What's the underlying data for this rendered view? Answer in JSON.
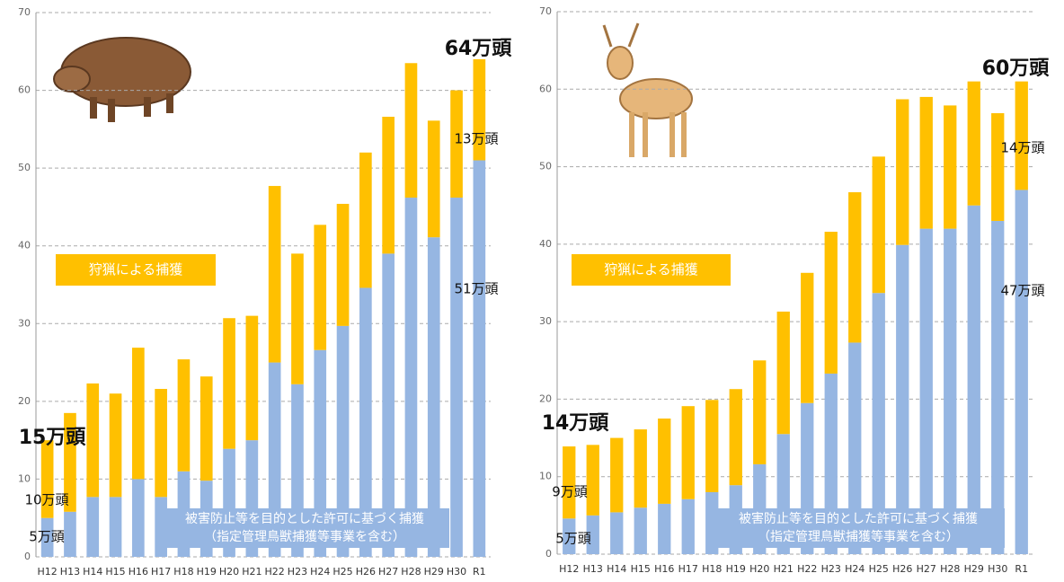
{
  "chart_data": [
    {
      "type": "bar",
      "stacked": true,
      "categories": [
        "H12",
        "H13",
        "H14",
        "H15",
        "H16",
        "H17",
        "H18",
        "H19",
        "H20",
        "H21",
        "H22",
        "H23",
        "H24",
        "H25",
        "H26",
        "H27",
        "H28",
        "H29",
        "H30",
        "R1"
      ],
      "series": [
        {
          "name": "被害防止等を目的とした許可に基づく捕獲",
          "note": "（指定管理鳥獣捕獲等事業を含む）",
          "color": "#96b6e2",
          "values": [
            5,
            5.8,
            7.7,
            7.7,
            10,
            7.7,
            11,
            9.8,
            13.9,
            15,
            25,
            22.2,
            26.6,
            29.7,
            34.6,
            39,
            46.2,
            41.1,
            46.2,
            51
          ]
        },
        {
          "name": "狩猟による捕獲",
          "color": "#ffc000",
          "values": [
            10,
            12.7,
            14.6,
            13.3,
            16.9,
            13.9,
            14.4,
            13.4,
            16.8,
            16,
            22.7,
            16.8,
            16.1,
            15.7,
            17.4,
            17.6,
            17.3,
            15,
            13.8,
            13
          ]
        }
      ],
      "ylim": [
        0,
        70
      ],
      "yticks": [
        0,
        10,
        20,
        30,
        40,
        50,
        60,
        70
      ],
      "grid": true,
      "annotations": [
        "64万頭",
        "13万頭",
        "51万頭",
        "15万頭",
        "10万頭",
        "5万頭"
      ]
    },
    {
      "type": "bar",
      "stacked": true,
      "categories": [
        "H12",
        "H13",
        "H14",
        "H15",
        "H16",
        "H17",
        "H18",
        "H19",
        "H20",
        "H21",
        "H22",
        "H23",
        "H24",
        "H25",
        "H26",
        "H27",
        "H28",
        "H29",
        "H30",
        "R1"
      ],
      "series": [
        {
          "name": "被害防止等を目的とした許可に基づく捕獲",
          "note": "（指定管理鳥獣捕獲等事業を含む）",
          "color": "#96b6e2",
          "values": [
            4.6,
            5,
            5.4,
            6,
            6.5,
            7.1,
            8,
            8.9,
            11.6,
            15.5,
            19.5,
            23.3,
            27.3,
            33.7,
            39.9,
            42,
            42,
            45,
            43,
            47
          ]
        },
        {
          "name": "狩猟による捕獲",
          "color": "#ffc000",
          "values": [
            9.3,
            9.1,
            9.6,
            10.1,
            11,
            12,
            11.9,
            12.4,
            13.4,
            15.8,
            16.8,
            18.3,
            19.4,
            17.6,
            18.8,
            17,
            15.9,
            16,
            13.9,
            14
          ]
        }
      ],
      "ylim": [
        0,
        70
      ],
      "yticks": [
        0,
        10,
        20,
        30,
        40,
        50,
        60,
        70
      ],
      "grid": true,
      "annotations": [
        "60万頭",
        "14万頭",
        "47万頭",
        "14万頭",
        "9万頭",
        "5万頭"
      ]
    }
  ]
}
